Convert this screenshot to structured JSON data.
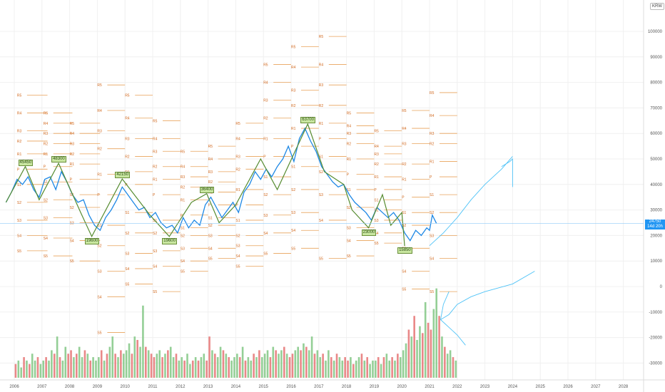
{
  "currency": "KRW",
  "price_tag": {
    "price": "24750",
    "countdown": "14d 20h"
  },
  "badges": [
    "45450",
    "48300",
    "19600",
    "42150",
    "19600",
    "36400",
    "63700",
    "23000",
    "15850"
  ],
  "chart_data": {
    "type": "line",
    "title": "",
    "xlabel": "",
    "ylabel": "",
    "x_ticks": [
      "2006",
      "2007",
      "2008",
      "2009",
      "2010",
      "2011",
      "2012",
      "2013",
      "2014",
      "2015",
      "2016",
      "2017",
      "2018",
      "2019",
      "2020",
      "2021",
      "2022",
      "2023",
      "2024",
      "2025",
      "2026",
      "2027",
      "2028"
    ],
    "y_ticks": [
      100000,
      90000,
      80000,
      70000,
      60000,
      50000,
      40000,
      30000,
      20000,
      10000,
      0,
      -10000,
      -20000,
      -30000
    ],
    "ylim": [
      -40000,
      110000
    ],
    "xlim": [
      2005.6,
      2029.1
    ],
    "grid": true,
    "series": [
      {
        "color": "#1e88e5",
        "x": [
          2005.7,
          2005.9,
          2006.1,
          2006.3,
          2006.5,
          2006.7,
          2006.9,
          2007.1,
          2007.3,
          2007.5,
          2007.7,
          2007.9,
          2008.1,
          2008.3,
          2008.5,
          2008.7,
          2008.9,
          2009.1,
          2009.3,
          2009.5,
          2009.7,
          2009.9,
          2010.1,
          2010.3,
          2010.5,
          2010.7,
          2010.9,
          2011.1,
          2011.3,
          2011.5,
          2011.7,
          2011.9,
          2012.1,
          2012.3,
          2012.5,
          2012.7,
          2012.9,
          2013.1,
          2013.3,
          2013.5,
          2013.7,
          2013.9,
          2014.1,
          2014.3,
          2014.5,
          2014.7,
          2014.9,
          2015.1,
          2015.3,
          2015.5,
          2015.7,
          2015.9,
          2016.1,
          2016.3,
          2016.5,
          2016.7,
          2016.9,
          2017.1,
          2017.3,
          2017.5,
          2017.7,
          2017.9,
          2018.1,
          2018.3,
          2018.5,
          2018.7,
          2018.9,
          2019.1,
          2019.3,
          2019.5,
          2019.7,
          2019.9,
          2020.1,
          2020.3,
          2020.5,
          2020.7,
          2020.9,
          2021.0,
          2021.1,
          2021.25
        ],
        "y": [
          33000,
          37000,
          42000,
          40000,
          43000,
          38000,
          35000,
          42000,
          43000,
          38000,
          45000,
          41000,
          36000,
          33000,
          34000,
          28000,
          24000,
          22000,
          27000,
          30000,
          34000,
          39000,
          36000,
          33000,
          30000,
          31000,
          27000,
          29000,
          25000,
          23000,
          24000,
          21000,
          27000,
          23000,
          26000,
          24000,
          32000,
          35000,
          31000,
          27000,
          30000,
          33000,
          29000,
          37000,
          40000,
          45000,
          42000,
          46000,
          43000,
          47000,
          50000,
          55000,
          49000,
          58000,
          62000,
          57000,
          53000,
          47000,
          44000,
          41000,
          39000,
          40000,
          36000,
          33000,
          31000,
          29000,
          26000,
          31000,
          29000,
          27000,
          29000,
          26000,
          21000,
          18000,
          22000,
          20000,
          23000,
          22000,
          28000,
          24750
        ]
      },
      {
        "color": "#558b2f",
        "x": [
          2005.7,
          2006.4,
          2006.9,
          2007.6,
          2008.4,
          2008.8,
          2009.9,
          2010.9,
          2011.6,
          2012.4,
          2012.95,
          2013.4,
          2014.0,
          2014.9,
          2015.5,
          2016.6,
          2017.2,
          2017.9,
          2018.2,
          2018.8,
          2019.3,
          2019.6,
          2020.0,
          2020.1
        ],
        "y": [
          33000,
          47000,
          34000,
          48300,
          29000,
          19600,
          42150,
          28000,
          19600,
          33000,
          36400,
          25000,
          32000,
          50000,
          38000,
          63700,
          45000,
          40000,
          30000,
          23000,
          36000,
          24000,
          29000,
          15850
        ]
      }
    ],
    "volume": {
      "years": [
        "2006",
        "2007",
        "2008",
        "2009",
        "2010",
        "2011",
        "2012",
        "2013",
        "2014",
        "2015",
        "2016",
        "2017",
        "2018",
        "2019",
        "2020",
        "2021"
      ],
      "max_value": 28000,
      "values": [
        [
          4000,
          5000,
          3000,
          6000,
          5000,
          4000,
          7000,
          5000,
          6000,
          4000
        ],
        [
          5000,
          6000,
          5000,
          8000,
          7000,
          12000,
          6000,
          5000,
          9000,
          7000
        ],
        [
          8000,
          6000,
          7000,
          9000,
          6000,
          8000,
          7000,
          5000,
          6000,
          5000
        ],
        [
          6000,
          8000,
          5000,
          7000,
          9000,
          12000,
          7000,
          6000,
          8000,
          7000
        ],
        [
          8000,
          10000,
          7000,
          12000,
          11000,
          9000,
          21000,
          9000,
          8000,
          7000
        ],
        [
          6000,
          7000,
          8000,
          6000,
          7000,
          8000,
          9000,
          6000,
          7000,
          5000
        ],
        [
          6000,
          5000,
          7000,
          4000,
          5000,
          6000,
          5000,
          6000,
          7000,
          5000
        ],
        [
          12000,
          8000,
          7000,
          6000,
          9000,
          8000,
          7000,
          6000,
          5000,
          6000
        ],
        [
          7000,
          6000,
          9000,
          5000,
          6000,
          5000,
          7000,
          6000,
          8000,
          6000
        ],
        [
          7000,
          8000,
          6000,
          9000,
          8000,
          7000,
          8000,
          9000,
          7000,
          6000
        ],
        [
          7000,
          8000,
          9000,
          8000,
          10000,
          9000,
          8000,
          12000,
          7000,
          8000
        ],
        [
          6000,
          7000,
          5000,
          8000,
          6000,
          5000,
          7000,
          6000,
          5000,
          6000
        ],
        [
          5000,
          6000,
          4000,
          5000,
          6000,
          7000,
          5000,
          6000,
          4000,
          5000
        ],
        [
          5000,
          6000,
          4000,
          6000,
          7000,
          5000,
          6000,
          5000,
          7000,
          6000
        ],
        [
          8000,
          10000,
          14000,
          12000,
          18000,
          11000,
          15000,
          13000,
          22000,
          16000
        ],
        [
          14000,
          20000,
          26000,
          18000,
          12000,
          9000,
          7000,
          8000,
          6000,
          5000
        ]
      ]
    },
    "pivot_levels": [
      {
        "x0": 2006.1,
        "x1": 2007.2,
        "levels": {
          "R5": 75000,
          "R4": 68000,
          "R3": 61000,
          "R2": 57000,
          "R1": 52000,
          "P": 46000,
          "S1": 40000,
          "S2": 33000,
          "S3": 26000,
          "S4": 20000,
          "S5": 14000
        }
      },
      {
        "x0": 2007.05,
        "x1": 2008.1,
        "levels": {
          "R5": 68000,
          "R4": 64000,
          "R3": 60000,
          "R2": 56000,
          "R1": 52000,
          "P": 47000,
          "S1": 41000,
          "S2": 34000,
          "S3": 27000,
          "S4": 19000,
          "S5": 12000
        }
      },
      {
        "x0": 2008.0,
        "x1": 2009.1,
        "levels": {
          "R5": 64000,
          "R4": 60000,
          "R3": 56000,
          "R2": 52000,
          "R1": 48000,
          "P": 42000,
          "S1": 36000,
          "S2": 31000,
          "S3": 25000,
          "S4": 18000,
          "S5": 10000
        }
      },
      {
        "x0": 2009.0,
        "x1": 2010.0,
        "levels": {
          "R5": 79000,
          "R4": 69000,
          "R3": 61000,
          "R2": 54000,
          "R1": 44000,
          "P": 36000,
          "S1": 24000,
          "S2": 16000,
          "S3": 6000,
          "S4": -4000,
          "S5": -18000
        }
      },
      {
        "x0": 2010.0,
        "x1": 2011.0,
        "levels": {
          "R5": 75000,
          "R4": 66000,
          "R3": 58000,
          "R2": 51000,
          "R1": 45000,
          "P": 40000,
          "S1": 29000,
          "S2": 21000,
          "S3": 13000,
          "S4": 7000,
          "S5": 1000
        }
      },
      {
        "x0": 2011.0,
        "x1": 2012.0,
        "levels": {
          "R5": 65000,
          "R4": 58000,
          "R3": 53000,
          "R2": 47000,
          "R1": 42000,
          "P": 36000,
          "S1": 26000,
          "S2": 21000,
          "S3": 14000,
          "S4": 8000,
          "S5": -2000
        }
      },
      {
        "x0": 2012.0,
        "x1": 2013.0,
        "levels": {
          "R5": 53000,
          "R4": 47000,
          "R3": 43000,
          "R2": 39000,
          "R1": 34000,
          "P": 28000,
          "S1": 23000,
          "S2": 20000,
          "S3": 15000,
          "S4": 10000,
          "S5": 6000
        }
      },
      {
        "x0": 2013.0,
        "x1": 2014.0,
        "levels": {
          "R5": 55000,
          "R4": 50000,
          "R3": 45000,
          "R2": 41000,
          "R1": 37000,
          "P": 32000,
          "S1": 27000,
          "S2": 24000,
          "S3": 20000,
          "S4": 15000,
          "S5": 11000
        }
      },
      {
        "x0": 2014.0,
        "x1": 2015.0,
        "levels": {
          "R5": 64000,
          "R4": 58000,
          "R3": 51000,
          "R2": 46000,
          "R1": 38000,
          "P": 32000,
          "S1": 26000,
          "S2": 20000,
          "S3": 16000,
          "S4": 12000,
          "S5": 8000
        }
      },
      {
        "x0": 2015.0,
        "x1": 2016.0,
        "levels": {
          "R5": 87000,
          "R4": 80000,
          "R3": 73000,
          "R2": 66000,
          "R1": 58000,
          "P": 51000,
          "S1": 43000,
          "S2": 36000,
          "S3": 28000,
          "S4": 21000,
          "S5": 13000
        }
      },
      {
        "x0": 2016.0,
        "x1": 2017.0,
        "levels": {
          "R5": 94000,
          "R4": 86000,
          "R3": 77000,
          "R2": 71000,
          "R1": 62000,
          "P": 55000,
          "S1": 47000,
          "S2": 38000,
          "S3": 29000,
          "S4": 22000,
          "S5": 15000
        }
      },
      {
        "x0": 2017.0,
        "x1": 2018.0,
        "levels": {
          "R5": 98000,
          "R4": 87000,
          "R3": 79000,
          "R2": 71000,
          "R1": 64000,
          "P": 58000,
          "S1": 51000,
          "S2": 45000,
          "S3": 36000,
          "S4": 26000,
          "S5": 11000
        }
      },
      {
        "x0": 2018.0,
        "x1": 2019.0,
        "levels": {
          "R5": 68000,
          "R4": 63000,
          "R3": 60000,
          "R2": 56000,
          "R1": 50000,
          "P": 44000,
          "S1": 38000,
          "S2": 31000,
          "S3": 23000,
          "S4": 18000,
          "S5": 12000
        }
      },
      {
        "x0": 2019.0,
        "x1": 2020.0,
        "levels": {
          "R5": 61000,
          "R4": 55000,
          "R3": 52000,
          "R2": 48000,
          "R1": 43000,
          "P": 38000,
          "S1": 34000,
          "S2": 30000,
          "S3": 26000,
          "S4": 21000,
          "S5": 17000
        }
      },
      {
        "x0": 2020.0,
        "x1": 2021.0,
        "levels": {
          "R5": 69000,
          "R4": 62000,
          "R3": 56000,
          "R2": 48000,
          "R1": 42000,
          "P": 35000,
          "S1": 29000,
          "S2": 24000,
          "S3": 15000,
          "S4": 6000,
          "S5": -1000
        }
      },
      {
        "x0": 2021.0,
        "x1": 2022.0,
        "levels": {
          "R5": 76000,
          "R4": 67000,
          "R3": 60000,
          "R2": 56000,
          "R1": 49000,
          "P": 43000,
          "S1": 36000,
          "S2": 29000,
          "S3": 20000,
          "S4": 11000,
          "S5": -2000
        }
      }
    ],
    "drawings": [
      {
        "x": [
          2021.0,
          2021.5,
          2022.0,
          2022.5,
          2023.0,
          2023.6,
          2024.0
        ],
        "y": [
          16000,
          21000,
          27000,
          34000,
          40000,
          46000,
          51000
        ]
      },
      {
        "x": [
          2023.6,
          2023.9,
          2024.0,
          2024.0
        ],
        "y": [
          47000,
          49000,
          50000,
          39000
        ]
      },
      {
        "x": [
          2021.7,
          2021.5,
          2021.4,
          2021.7,
          2022.0,
          2022.5,
          2023.0,
          2024.0,
          2024.8
        ],
        "y": [
          -2000,
          -7000,
          -13000,
          -11000,
          -7000,
          -4000,
          -2000,
          1000,
          6000
        ]
      },
      {
        "x": [
          2021.4,
          2022.0,
          2022.3
        ],
        "y": [
          -13000,
          -19000,
          -23000
        ]
      }
    ]
  }
}
